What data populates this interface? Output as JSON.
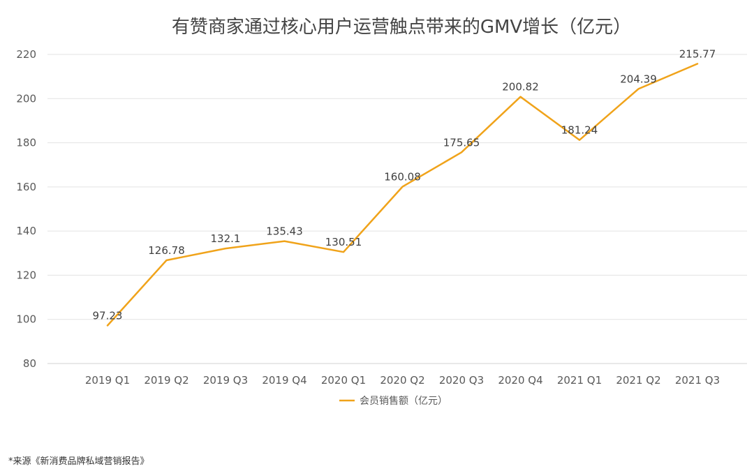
{
  "chart_data": {
    "type": "line",
    "title": "有赞商家通过核心用户运营触点带来的GMV增长（亿元）",
    "categories": [
      "2019 Q1",
      "2019 Q2",
      "2019 Q3",
      "2019 Q4",
      "2020 Q1",
      "2020 Q2",
      "2020 Q3",
      "2020 Q4",
      "2021 Q1",
      "2021 Q2",
      "2021 Q3"
    ],
    "series": [
      {
        "name": "会员销售额（亿元）",
        "values": [
          97.23,
          126.78,
          132.1,
          135.43,
          130.51,
          160.08,
          175.65,
          200.82,
          181.24,
          204.39,
          215.77
        ],
        "labels": [
          "97.23",
          "126.78",
          "132.1",
          "135.43",
          "130.51",
          "160.08",
          "175.65",
          "200.82",
          "181.24",
          "204.39",
          "215.77"
        ],
        "color": "#F0A31A"
      }
    ],
    "ylim": [
      80,
      220
    ],
    "yticks": [
      80,
      100,
      120,
      140,
      160,
      180,
      200,
      220
    ],
    "grid": true,
    "legend": "bottom-center",
    "xlabel": "",
    "ylabel": ""
  },
  "source_note": "*来源《新消费品牌私域营销报告》"
}
